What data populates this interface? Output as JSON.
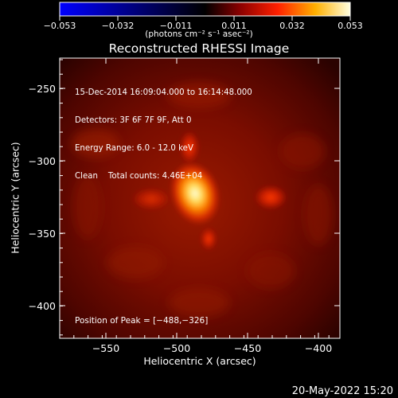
{
  "colorbar": {
    "tick_labels": [
      "−0.053",
      "−0.032",
      "−0.011",
      "0.011",
      "0.032",
      "0.053"
    ],
    "unit_label": "(photons cm⁻² s⁻¹ asec⁻²)"
  },
  "title": "Reconstructed RHESSI Image",
  "info": {
    "time_range": "15-Dec-2014 16:09:04.000 to 16:14:48.000",
    "detectors": "Detectors: 3F 6F 7F 9F, Att 0",
    "energy_range": "Energy Range: 6.0 - 12.0 keV",
    "method": "Clean    Total counts: 4.46E+04",
    "peak_position": "Position of Peak = [−488,−326]"
  },
  "axes": {
    "xlabel": "Heliocentric X (arcsec)",
    "ylabel": "Heliocentric Y (arcsec)",
    "x_ticks": [
      "−550",
      "−500",
      "−450",
      "−400"
    ],
    "y_ticks": [
      "−250",
      "−300",
      "−350",
      "−400"
    ]
  },
  "footer_date": "20-May-2022 15:20",
  "colors": {
    "background": "#000000",
    "text": "#ffffff",
    "image_base": "#7a0a00",
    "peak": "#ffffe0"
  }
}
